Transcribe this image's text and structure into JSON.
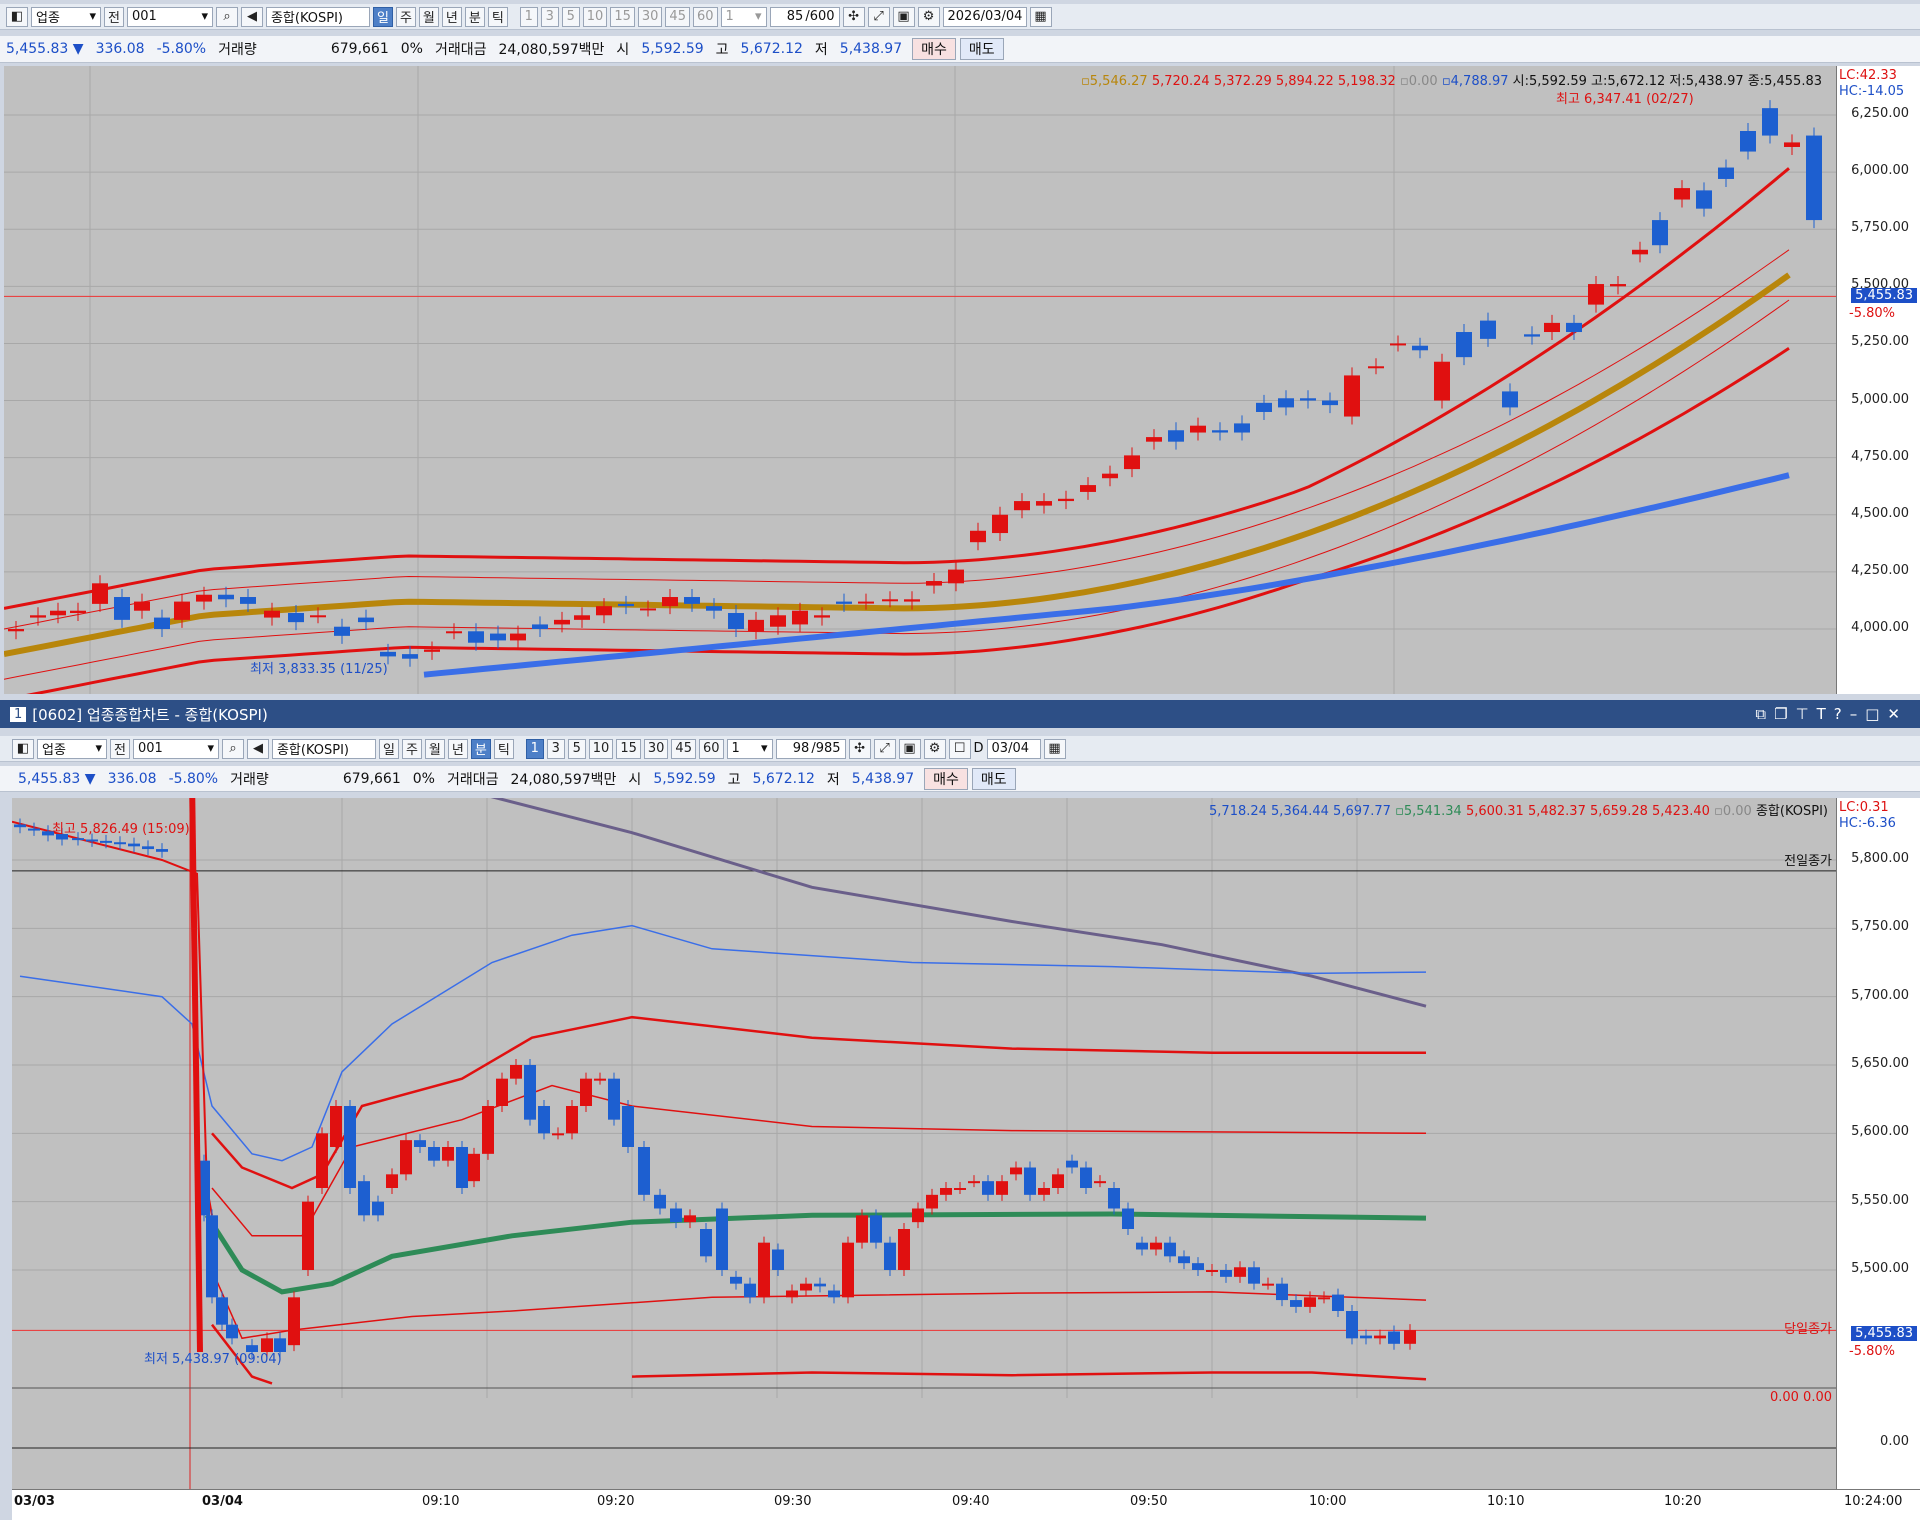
{
  "top": {
    "toolbar": {
      "market": "업종",
      "prev": "전",
      "code": "001",
      "name": "종합(KOSPI)",
      "periods": [
        "일",
        "주",
        "월",
        "년",
        "분",
        "틱"
      ],
      "active_period": "일",
      "intervals": [
        "1",
        "3",
        "5",
        "10",
        "15",
        "30",
        "45",
        "60"
      ],
      "interval_value": "1",
      "count": "85",
      "count_total": "/600",
      "date": "2026/03/04"
    },
    "quote": {
      "price": "5,455.83",
      "arrow": "▼",
      "change": "336.08",
      "change_pct": "-5.80%",
      "volume_label": "거래량",
      "volume": "679,661",
      "volume_pct": "0%",
      "amount_label": "거래대금",
      "amount": "24,080,597백만",
      "open_label": "시",
      "open": "5,592.59",
      "high_label": "고",
      "high": "5,672.12",
      "low_label": "저",
      "low": "5,438.97",
      "buy": "매수",
      "sell": "매도"
    },
    "legend": {
      "vals_gold": "5,546.27",
      "vals_red": "5,720.24 5,372.29 5,894.22 5,198.32",
      "vals_zero": "0.00",
      "vals_blue": "4,788.97",
      "ohlc": "시:5,592.59 고:5,672.12 저:5,438.97 종:5,455.83",
      "lc": "LC:42.33",
      "hc": "HC:-14.05"
    },
    "annotations": {
      "high": "최고 6,347.41 (02/27)",
      "low": "최저 3,833.35 (11/25)"
    },
    "y_ticks": [
      "6,250.00",
      "6,000.00",
      "5,750.00",
      "5,500.00",
      "5,250.00",
      "5,000.00",
      "4,750.00",
      "4,500.00",
      "4,250.00",
      "4,000.00"
    ],
    "price_tag": "5,455.83",
    "price_tag_pct": "-5.80%"
  },
  "bottom": {
    "window_title": "[0602] 업종종합차트 - 종합(KOSPI)",
    "window_num": "1",
    "toolbar": {
      "market": "업종",
      "prev": "전",
      "code": "001",
      "name": "종합(KOSPI)",
      "periods": [
        "일",
        "주",
        "월",
        "년",
        "분",
        "틱"
      ],
      "active_period": "분",
      "intervals": [
        "1",
        "3",
        "5",
        "10",
        "15",
        "30",
        "45",
        "60"
      ],
      "active_interval": "1",
      "interval_value": "1",
      "count": "98",
      "count_total": "/985",
      "date_prefix": "D",
      "date": "03/04"
    },
    "quote": {
      "price": "5,455.83",
      "arrow": "▼",
      "change": "336.08",
      "change_pct": "-5.80%",
      "volume_label": "거래량",
      "volume": "679,661",
      "volume_pct": "0%",
      "amount_label": "거래대금",
      "amount": "24,080,597백만",
      "open_label": "시",
      "open": "5,592.59",
      "high_label": "고",
      "high": "5,672.12",
      "low_label": "저",
      "low": "5,438.97",
      "buy": "매수",
      "sell": "매도"
    },
    "legend": {
      "vals_blue": "5,718.24 5,364.44 5,697.77",
      "vals_green": "5,541.34",
      "vals_red": "5,600.31 5,482.37 5,659.28 5,423.40",
      "vals_zero": "0.00",
      "name": "종합(KOSPI)",
      "lc": "LC:0.31",
      "hc": "HC:-6.36"
    },
    "annotations": {
      "high": "최고 5,826.49 (15:09)",
      "low": "최저 5,438.97 (09:04)",
      "prev_close": "전일종가",
      "today_close": "당일종가"
    },
    "y_ticks": [
      "5,800.00",
      "5,750.00",
      "5,700.00",
      "5,650.00",
      "5,600.00",
      "5,550.00",
      "5,500.00"
    ],
    "price_tag": "5,455.83",
    "price_tag_pct": "-5.80%",
    "sub_values": "0.00 0.00",
    "sub_tick": "0.00",
    "time_labels": [
      "03/03",
      "03/04",
      "09:10",
      "09:20",
      "09:30",
      "09:40",
      "09:50",
      "10:00",
      "10:10",
      "10:20",
      "10:24:00"
    ]
  }
}
